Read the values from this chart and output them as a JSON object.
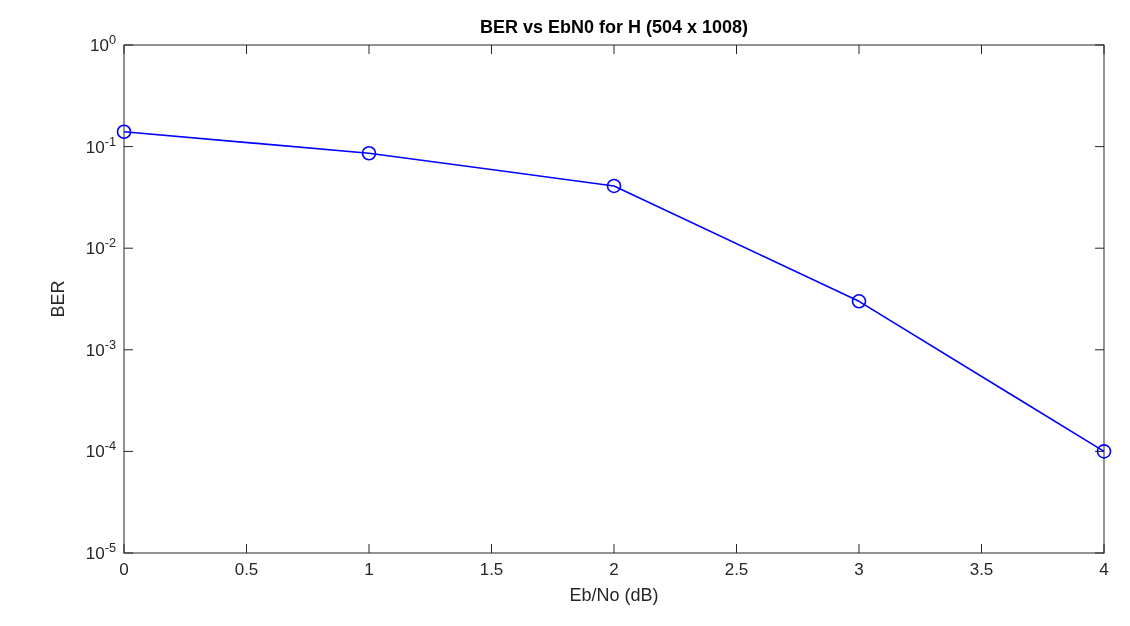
{
  "chart_data": {
    "type": "line",
    "title": "BER vs EbN0 for H (504 x 1008)",
    "xlabel": "Eb/No (dB)",
    "ylabel": "BER",
    "x": [
      0,
      1,
      2,
      3,
      4
    ],
    "series": [
      {
        "color": "#0000ff",
        "values": [
          0.14,
          0.086,
          0.041,
          0.003,
          0.0001
        ]
      }
    ],
    "xlim": [
      0,
      4
    ],
    "xticks": [
      0,
      0.5,
      1,
      1.5,
      2,
      2.5,
      3,
      3.5,
      4
    ],
    "ylim": [
      1e-05,
      1
    ],
    "yticks": [
      {
        "value": 1e-05,
        "label": "10$^{-5}$"
      },
      {
        "value": 0.0001,
        "label": "10$^{-4}$"
      },
      {
        "value": 0.001,
        "label": "10$^{-3}$"
      },
      {
        "value": 0.01,
        "label": "10$^{-2}$"
      },
      {
        "value": 0.1,
        "label": "10$^{-1}$"
      },
      {
        "value": 1,
        "label": "10$^{0}$"
      }
    ],
    "log": "y",
    "grid": false,
    "marker": "circle",
    "line_style": "solid"
  }
}
